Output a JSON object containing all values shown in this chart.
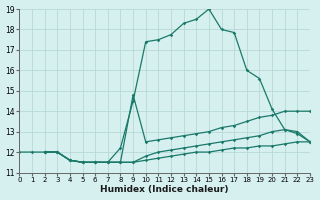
{
  "xlabel": "Humidex (Indice chaleur)",
  "bg_color": "#d6efef",
  "grid_color": "#b8d8d8",
  "line_color": "#1a7a6a",
  "xlim": [
    0,
    23
  ],
  "ylim": [
    11,
    19
  ],
  "xticks": [
    0,
    1,
    2,
    3,
    4,
    5,
    6,
    7,
    8,
    9,
    10,
    11,
    12,
    13,
    14,
    15,
    16,
    17,
    18,
    19,
    20,
    21,
    22,
    23
  ],
  "yticks": [
    11,
    12,
    13,
    14,
    15,
    16,
    17,
    18,
    19
  ],
  "lines": [
    {
      "x": [
        0,
        1,
        2,
        3,
        4,
        5,
        6,
        7,
        8,
        9,
        10,
        11,
        12,
        13,
        14,
        15,
        16,
        17,
        18,
        19,
        20,
        21,
        22,
        23
      ],
      "y": [
        12.0,
        12.0,
        12.0,
        12.0,
        11.6,
        11.5,
        11.5,
        11.5,
        12.2,
        14.5,
        17.4,
        17.5,
        17.75,
        18.3,
        18.5,
        19.0,
        18.0,
        17.85,
        16.0,
        15.6,
        14.1,
        13.1,
        13.0,
        12.5
      ]
    },
    {
      "x": [
        2,
        3,
        4,
        5,
        6,
        7,
        8,
        9,
        10,
        11,
        12,
        13,
        14,
        15,
        16,
        17,
        18,
        19,
        20,
        21,
        22,
        23
      ],
      "y": [
        12.0,
        12.0,
        11.6,
        11.5,
        11.5,
        11.5,
        11.5,
        14.8,
        12.5,
        12.6,
        12.7,
        12.8,
        12.9,
        13.0,
        13.2,
        13.3,
        13.5,
        13.7,
        13.8,
        14.0,
        14.0,
        14.0
      ]
    },
    {
      "x": [
        2,
        3,
        4,
        5,
        6,
        7,
        8,
        9,
        10,
        11,
        12,
        13,
        14,
        15,
        16,
        17,
        18,
        19,
        20,
        21,
        22,
        23
      ],
      "y": [
        12.0,
        12.0,
        11.6,
        11.5,
        11.5,
        11.5,
        11.5,
        11.5,
        11.8,
        12.0,
        12.1,
        12.2,
        12.3,
        12.4,
        12.5,
        12.6,
        12.7,
        12.8,
        13.0,
        13.1,
        12.9,
        12.5
      ]
    },
    {
      "x": [
        2,
        3,
        4,
        5,
        6,
        7,
        8,
        9,
        10,
        11,
        12,
        13,
        14,
        15,
        16,
        17,
        18,
        19,
        20,
        21,
        22,
        23
      ],
      "y": [
        12.0,
        12.0,
        11.6,
        11.5,
        11.5,
        11.5,
        11.5,
        11.5,
        11.6,
        11.7,
        11.8,
        11.9,
        12.0,
        12.0,
        12.1,
        12.2,
        12.2,
        12.3,
        12.3,
        12.4,
        12.5,
        12.5
      ]
    }
  ]
}
